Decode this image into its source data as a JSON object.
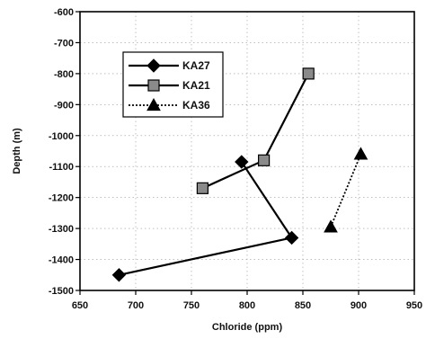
{
  "chart_data": {
    "type": "line",
    "xlabel": "Chloride (ppm)",
    "ylabel": "Depth (m)",
    "xlim": [
      650,
      950
    ],
    "ylim": [
      -1500,
      -600
    ],
    "x_ticks": [
      "650",
      "700",
      "750",
      "800",
      "850",
      "900",
      "950"
    ],
    "y_ticks": [
      "-600",
      "-700",
      "-800",
      "-900",
      "-1000",
      "-1100",
      "-1200",
      "-1300",
      "-1400",
      "-1500"
    ],
    "grid": true,
    "legend_position": "upper-left",
    "series": [
      {
        "name": "KA27",
        "marker": "diamond",
        "line_style": "solid",
        "color": "#000000",
        "points": [
          [
            685,
            -1450
          ],
          [
            840,
            -1330
          ],
          [
            795,
            -1085
          ]
        ]
      },
      {
        "name": "KA21",
        "marker": "square",
        "line_style": "solid",
        "color": "#000000",
        "points": [
          [
            760,
            -1170
          ],
          [
            815,
            -1080
          ],
          [
            855,
            -800
          ]
        ]
      },
      {
        "name": "KA36",
        "marker": "triangle",
        "line_style": "dotted",
        "color": "#000000",
        "points": [
          [
            875,
            -1295
          ],
          [
            902,
            -1060
          ]
        ]
      }
    ]
  }
}
